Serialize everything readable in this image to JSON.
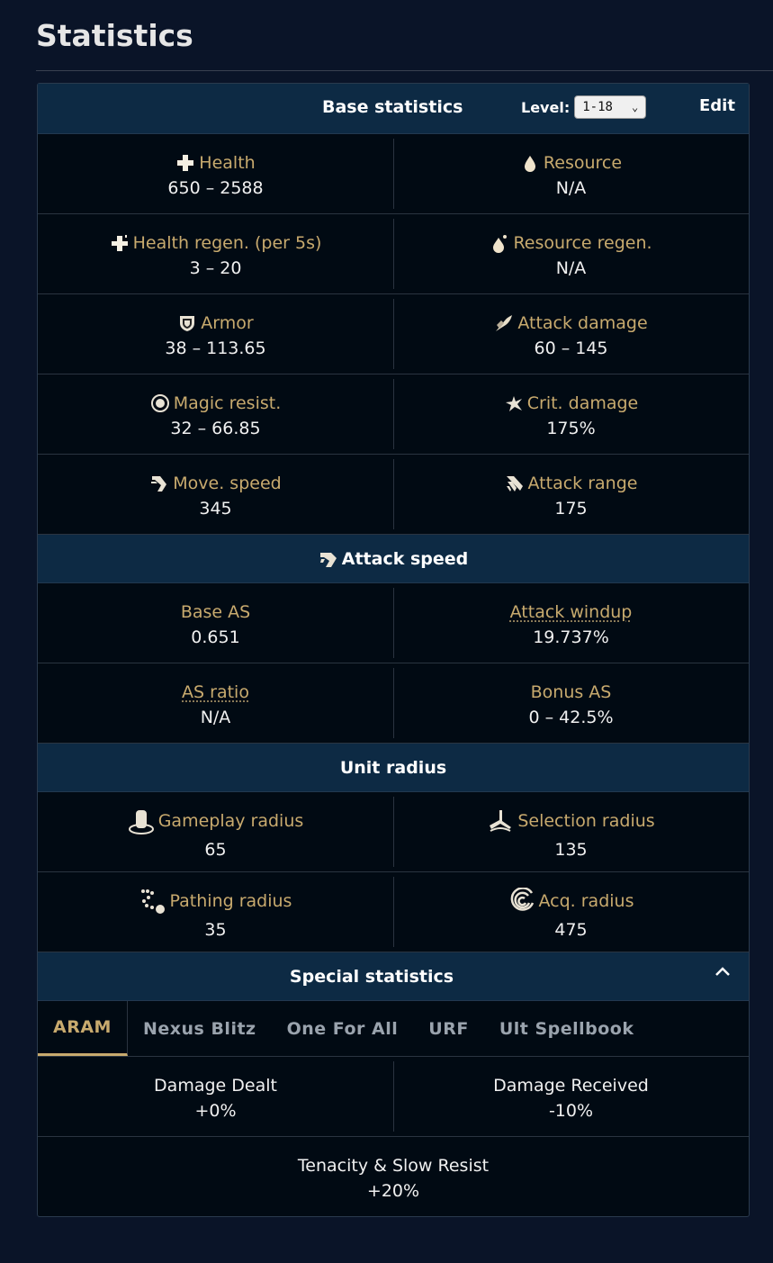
{
  "page_title": "Statistics",
  "base": {
    "title": "Base statistics",
    "level_label": "Level:",
    "level_value": "1-18",
    "edit_label": "Edit",
    "rows": [
      [
        {
          "label": "Health",
          "value": "650 – 2588",
          "icon": "health-icon"
        },
        {
          "label": "Resource",
          "value": "N/A",
          "icon": "resource-icon"
        }
      ],
      [
        {
          "label": "Health regen. (per 5s)",
          "value": "3 – 20",
          "icon": "health-regen-icon"
        },
        {
          "label": "Resource regen.",
          "value": "N/A",
          "icon": "resource-regen-icon"
        }
      ],
      [
        {
          "label": "Armor",
          "value": "38 – 113.65",
          "icon": "armor-icon"
        },
        {
          "label": "Attack damage",
          "value": "60 – 145",
          "icon": "attack-damage-icon"
        }
      ],
      [
        {
          "label": "Magic resist.",
          "value": "32 – 66.85",
          "icon": "magic-resist-icon"
        },
        {
          "label": "Crit. damage",
          "value": "175%",
          "icon": "crit-damage-icon"
        }
      ],
      [
        {
          "label": "Move. speed",
          "value": "345",
          "icon": "move-speed-icon"
        },
        {
          "label": "Attack range",
          "value": "175",
          "icon": "attack-range-icon"
        }
      ]
    ]
  },
  "attack_speed": {
    "title": "Attack speed",
    "rows": [
      [
        {
          "label": "Base AS",
          "value": "0.651"
        },
        {
          "label": "Attack windup",
          "value": "19.737%"
        }
      ],
      [
        {
          "label": "AS ratio",
          "value": "N/A"
        },
        {
          "label": "Bonus AS",
          "value": "0 – 42.5%"
        }
      ]
    ]
  },
  "unit_radius": {
    "title": "Unit radius",
    "rows": [
      [
        {
          "label": "Gameplay radius",
          "value": "65",
          "icon": "gameplay-radius-icon"
        },
        {
          "label": "Selection radius",
          "value": "135",
          "icon": "selection-radius-icon"
        }
      ],
      [
        {
          "label": "Pathing radius",
          "value": "35",
          "icon": "pathing-radius-icon"
        },
        {
          "label": "Acq. radius",
          "value": "475",
          "icon": "acquisition-radius-icon"
        }
      ]
    ]
  },
  "special": {
    "title": "Special statistics",
    "tabs": [
      "ARAM",
      "Nexus Blitz",
      "One For All",
      "URF",
      "Ult Spellbook"
    ],
    "active_tab": "ARAM",
    "rows": [
      [
        {
          "label": "Damage Dealt",
          "value": "+0%"
        },
        {
          "label": "Damage Received",
          "value": "-10%"
        }
      ],
      [
        {
          "label": "Tenacity & Slow Resist",
          "value": "+20%"
        }
      ]
    ]
  },
  "colors": {
    "background": "#0a1428",
    "header": "#0d2a44",
    "gold": "#c8aa6e"
  }
}
